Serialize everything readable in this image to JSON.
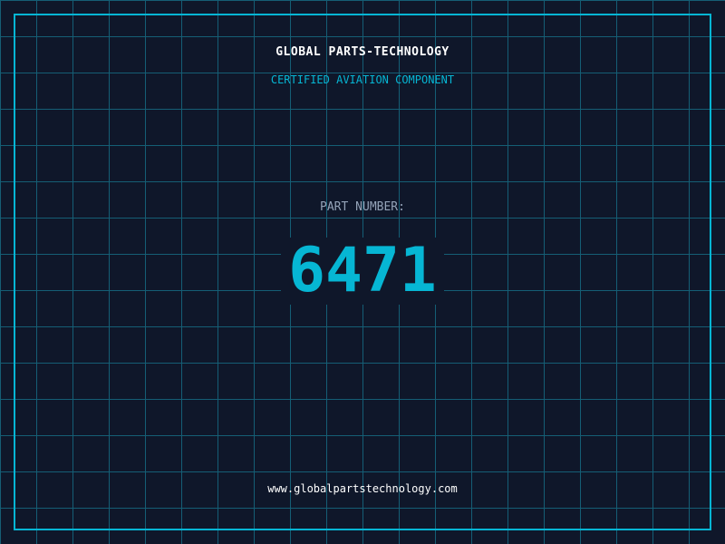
{
  "header": {
    "brand": "GLOBAL PARTS-TECHNOLOGY",
    "subtitle": "CERTIFIED AVIATION COMPONENT"
  },
  "main": {
    "label": "PART NUMBER:",
    "part_number": "6471"
  },
  "footer": {
    "url": "www.globalpartstechnology.com"
  },
  "colors": {
    "background": "#0f172a",
    "accent": "#06b6d4",
    "grid": "#155e75"
  }
}
